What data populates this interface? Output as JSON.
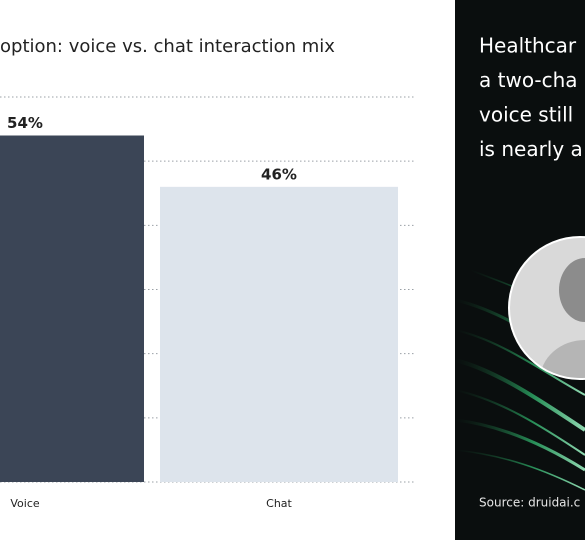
{
  "chart_data": {
    "type": "bar",
    "title": "option: voice vs. chat interaction mix",
    "categories": [
      "Voice",
      "Chat"
    ],
    "values": [
      54,
      46
    ],
    "value_labels": [
      "54%",
      "46%"
    ],
    "colors": [
      "#3b4556",
      "#dde4ec"
    ],
    "ylim": [
      0,
      60
    ],
    "yticks": [
      0,
      10,
      20,
      30,
      40,
      50,
      60
    ],
    "grid": true
  },
  "panel": {
    "lines": [
      "Healthcar",
      "a two-cha",
      "voice still",
      "is nearly a"
    ],
    "source": "Source: druidai.c"
  }
}
